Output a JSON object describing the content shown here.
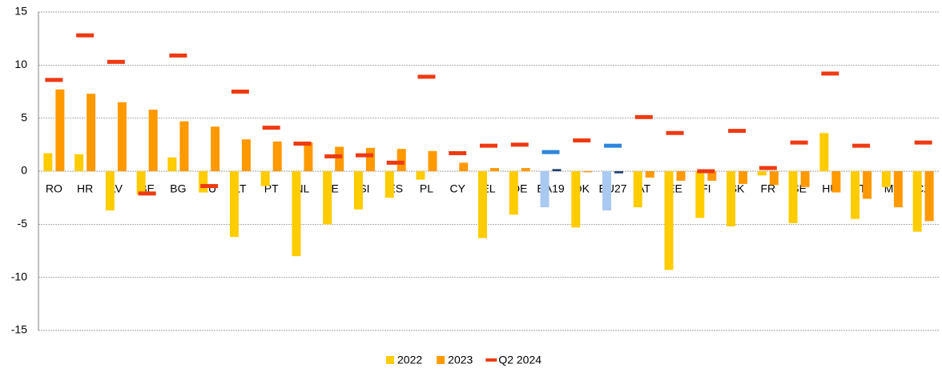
{
  "chart_data": {
    "type": "bar",
    "categories": [
      "RO",
      "HR",
      "LV",
      "BE",
      "BG",
      "LU",
      "LT",
      "PT",
      "NL",
      "IE",
      "SI",
      "ES",
      "PL",
      "CY",
      "EL",
      "DE",
      "EA19",
      "DK",
      "EU27",
      "AT",
      "EE",
      "FI",
      "SK",
      "FR",
      "SE",
      "HU",
      "IT",
      "MT",
      "CZ"
    ],
    "series": [
      {
        "name": "2022",
        "color": "#ffcc00",
        "kind": "bar",
        "colors": {
          "EA19": "#a9c9f0",
          "EU27": "#a9c9f0"
        },
        "values": [
          1.7,
          1.6,
          -3.7,
          -2.2,
          1.3,
          -2.0,
          -6.2,
          -1.4,
          -8.0,
          -5.0,
          -3.6,
          -2.5,
          -0.8,
          0,
          -6.3,
          -4.1,
          -3.4,
          -5.3,
          -3.7,
          -3.4,
          -9.3,
          -4.4,
          -5.2,
          -0.4,
          -4.9,
          3.6,
          -4.5,
          -1.5,
          -5.7
        ]
      },
      {
        "name": "2023",
        "color": "#ff9900",
        "kind": "bar",
        "colors": {
          "EA19": "#1f3f6e",
          "EU27": "#1f3f6e"
        },
        "values": [
          7.7,
          7.3,
          6.5,
          5.8,
          4.7,
          4.2,
          3.0,
          2.8,
          2.7,
          2.3,
          2.2,
          2.1,
          1.9,
          0.8,
          0.3,
          0.3,
          0.2,
          -0.1,
          -0.2,
          -0.6,
          -0.9,
          -0.9,
          -1.2,
          -1.3,
          -1.5,
          -2.0,
          -2.6,
          -3.4,
          -4.7
        ]
      },
      {
        "name": "Q2 2024",
        "color": "#ee3a12",
        "kind": "marker",
        "colors": {
          "EA19": "#2e86de",
          "EU27": "#2e86de"
        },
        "values": [
          8.6,
          12.8,
          10.3,
          -2.1,
          10.9,
          -1.4,
          7.5,
          4.1,
          2.6,
          1.4,
          1.5,
          0.8,
          8.9,
          1.7,
          2.4,
          2.5,
          1.8,
          2.9,
          2.4,
          5.1,
          3.6,
          0.0,
          3.8,
          0.3,
          2.7,
          9.2,
          2.4,
          null,
          2.7
        ]
      }
    ],
    "ylim": [
      -15,
      15
    ],
    "yticks": [
      15,
      10,
      5,
      0,
      -5,
      -10,
      -15
    ],
    "grid": true,
    "legend": "bottom"
  }
}
